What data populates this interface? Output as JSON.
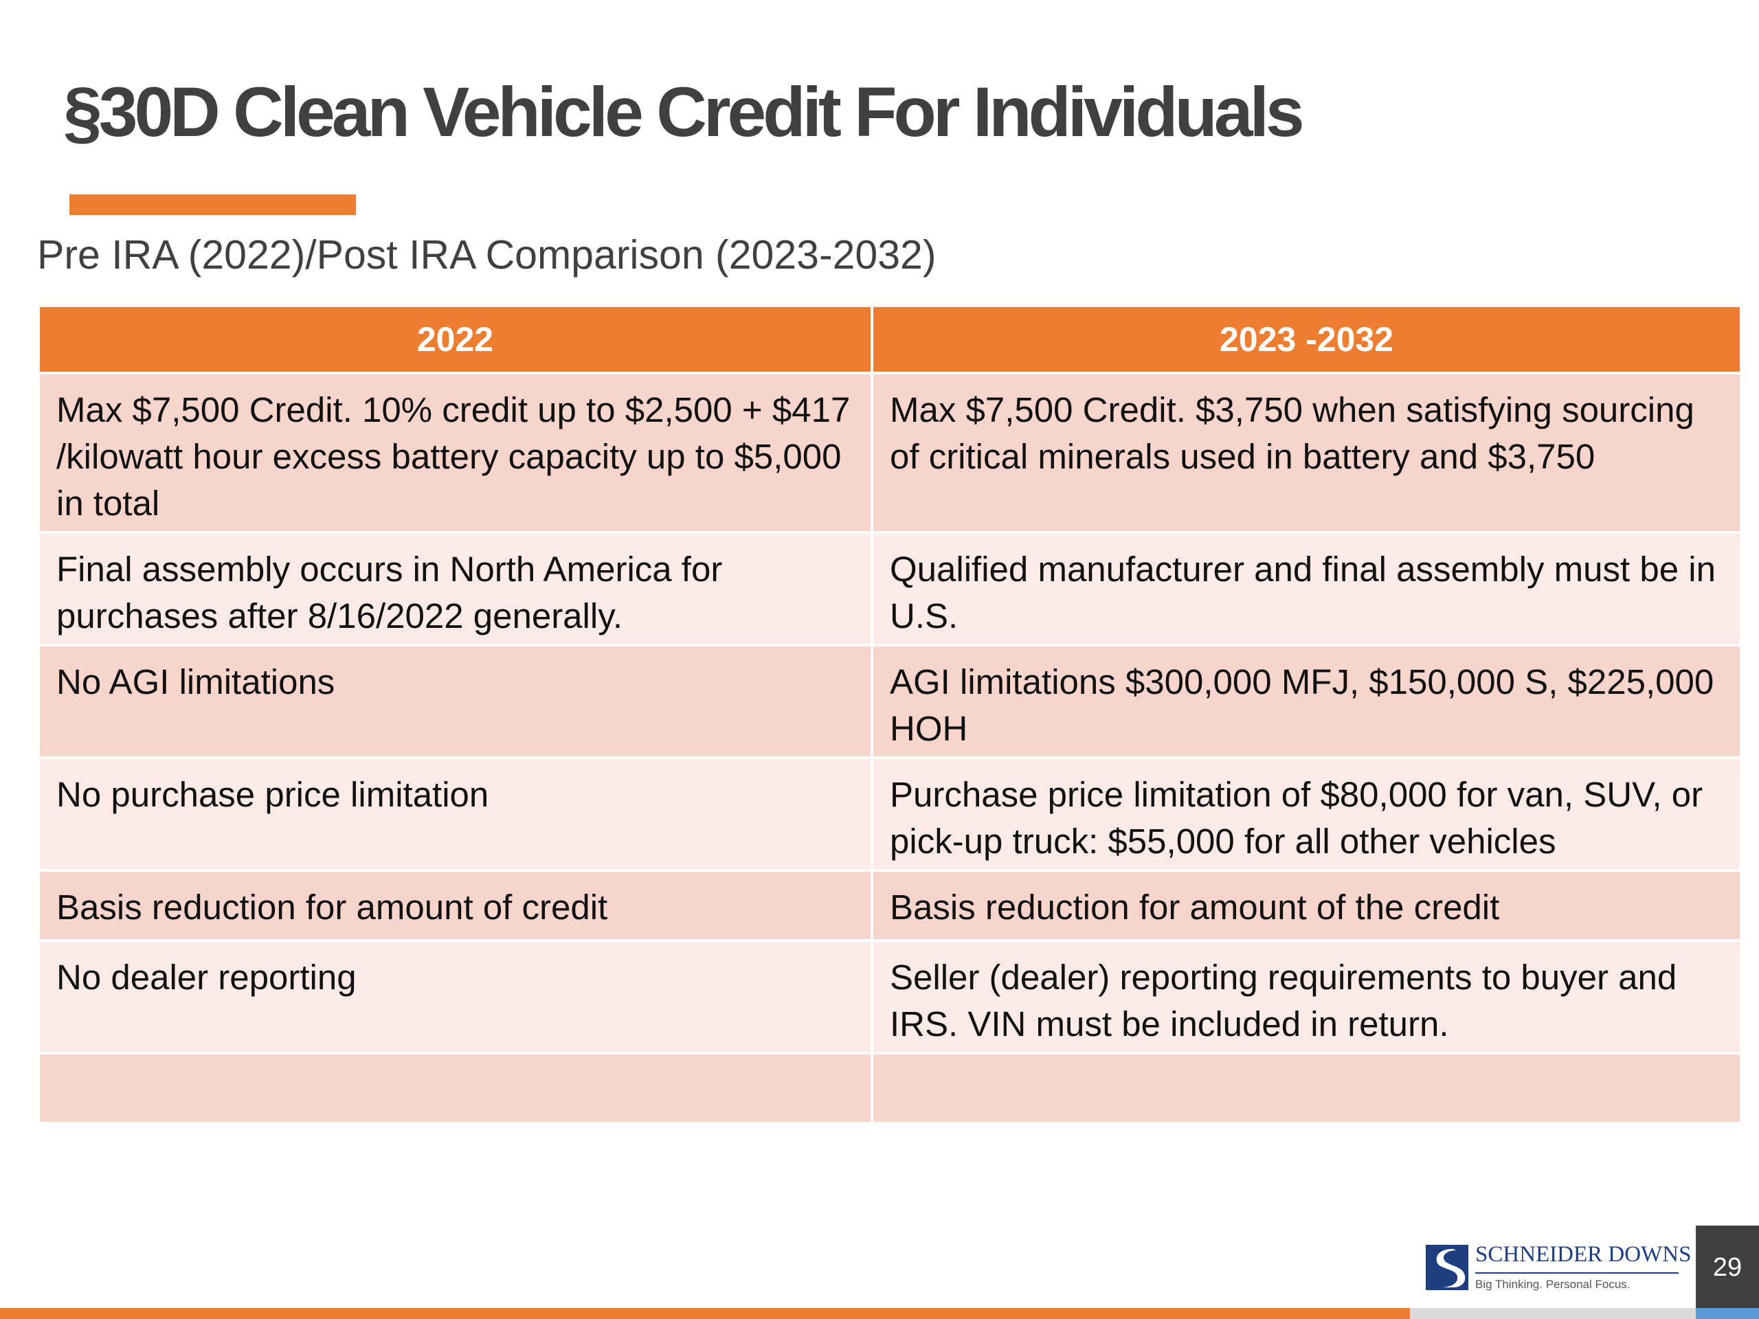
{
  "slide": {
    "title": "§30D Clean Vehicle Credit For Individuals",
    "subtitle": "Pre IRA (2022)/Post IRA Comparison (2023-2032)",
    "page_number": "29"
  },
  "table": {
    "headers": [
      "2022",
      "2023 -2032"
    ],
    "rows": [
      [
        "Max $7,500 Credit.  10% credit up to $2,500 + $417 /kilowatt hour excess battery capacity  up to $5,000 in total",
        "Max $7,500 Credit.  $3,750 when satisfying sourcing of critical minerals used in battery and $3,750"
      ],
      [
        "Final assembly occurs in North America for purchases after 8/16/2022 generally.",
        "Qualified manufacturer and final assembly must be in U.S."
      ],
      [
        "No AGI limitations",
        "AGI limitations $300,000 MFJ, $150,000 S, $225,000 HOH"
      ],
      [
        "No purchase price limitation",
        "Purchase price limitation of $80,000 for van, SUV, or pick-up truck: $55,000 for all other vehicles"
      ],
      [
        "Basis reduction for amount of credit",
        "Basis reduction for amount of the credit"
      ],
      [
        "No dealer reporting",
        "Seller (dealer) reporting requirements to buyer and IRS. VIN must be included in return."
      ],
      [
        "",
        ""
      ]
    ]
  },
  "logo": {
    "name": "SCHNEIDER DOWNS",
    "tagline": "Big Thinking. Personal Focus."
  },
  "colors": {
    "accent": "#ED7D31",
    "title_text": "#404040",
    "row_odd": "#F8D5CC",
    "row_even": "#FBEAE6",
    "logo_blue": "#1F3E82"
  }
}
